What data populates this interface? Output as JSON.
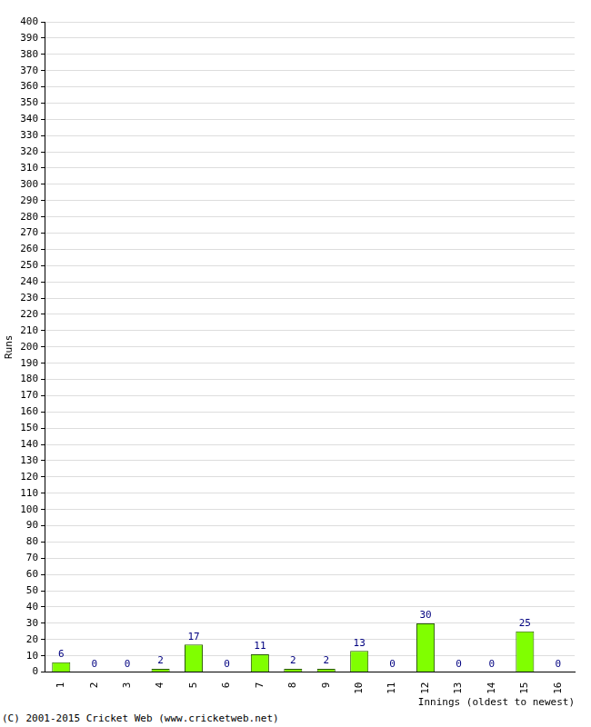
{
  "chart_data": {
    "type": "bar",
    "categories": [
      "1",
      "2",
      "3",
      "4",
      "5",
      "6",
      "7",
      "8",
      "9",
      "10",
      "11",
      "12",
      "13",
      "14",
      "15",
      "16"
    ],
    "values": [
      6,
      0,
      0,
      2,
      17,
      0,
      11,
      2,
      2,
      13,
      0,
      30,
      0,
      0,
      25,
      0
    ],
    "color": "#80ff00",
    "y_label": "Runs",
    "x_label": "Innings (oldest to newest)",
    "annotations": [
      "(C) 2001-2015 Cricket Web (www.cricketweb.net)"
    ],
    "ylim": [
      0,
      400
    ],
    "yticks": [
      0,
      10,
      20,
      30,
      40,
      50,
      60,
      70,
      80,
      90,
      100,
      110,
      120,
      130,
      140,
      150,
      160,
      170,
      180,
      190,
      200,
      210,
      220,
      230,
      240,
      250,
      260,
      270,
      280,
      290,
      300,
      310,
      320,
      330,
      340,
      350,
      360,
      370,
      380,
      390,
      400
    ],
    "grid": true,
    "data_labels": true
  }
}
